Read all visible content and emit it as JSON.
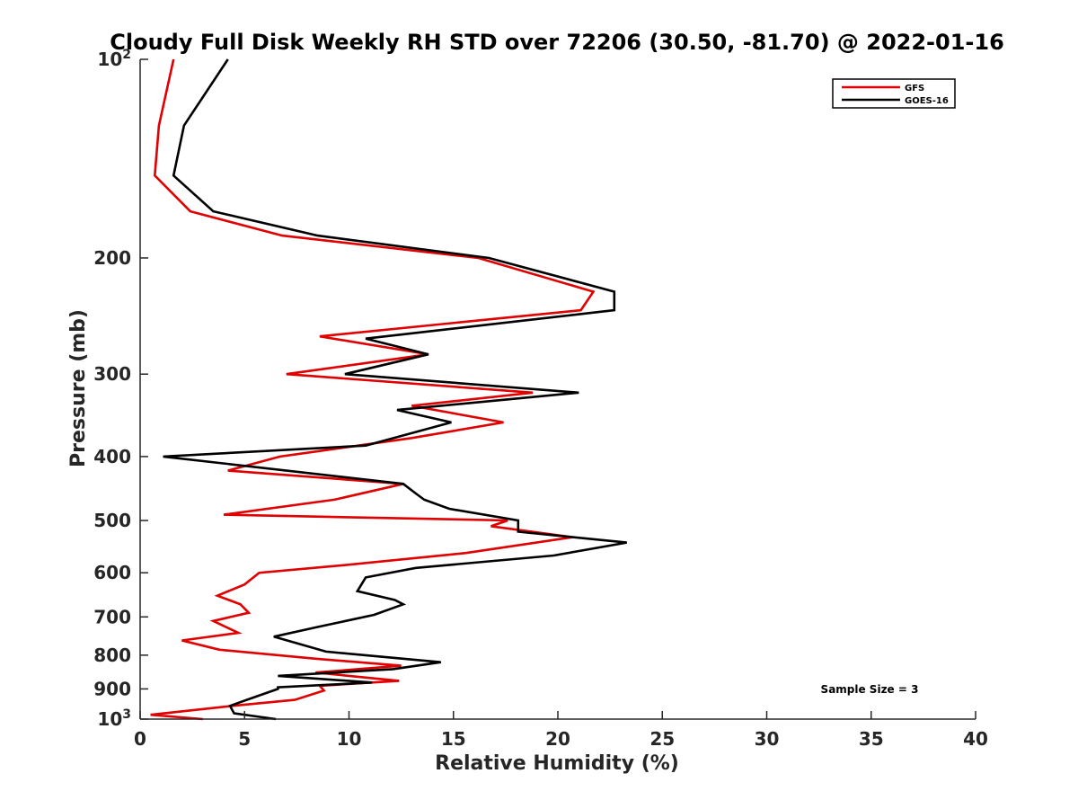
{
  "chart_data": {
    "type": "line",
    "title": "Cloudy Full Disk Weekly RH STD over 72206 (30.50, -81.70) @ 2022-01-16",
    "xlabel": "Relative Humidity (%)",
    "ylabel": "Pressure (mb)",
    "xlim": [
      0,
      40
    ],
    "ylim": [
      100,
      1000
    ],
    "yscale": "log",
    "yaxis_reversed": true,
    "x_ticks": [
      "0",
      "5",
      "10",
      "15",
      "20",
      "25",
      "30",
      "35",
      "40"
    ],
    "y_ticks": [
      {
        "value": 100,
        "label": "10",
        "exp": "2"
      },
      {
        "value": 200,
        "label": "200"
      },
      {
        "value": 300,
        "label": "300"
      },
      {
        "value": 400,
        "label": "400"
      },
      {
        "value": 500,
        "label": "500"
      },
      {
        "value": 600,
        "label": "600"
      },
      {
        "value": 700,
        "label": "700"
      },
      {
        "value": 800,
        "label": "800"
      },
      {
        "value": 900,
        "label": "900"
      },
      {
        "value": 1000,
        "label": "10",
        "exp": "3"
      }
    ],
    "grid": false,
    "legend_position": "top-right",
    "series": [
      {
        "name": "GFS",
        "color": "#e00000",
        "points": [
          [
            1.6,
            100
          ],
          [
            0.9,
            126
          ],
          [
            0.7,
            150
          ],
          [
            2.4,
            170
          ],
          [
            6.8,
            185
          ],
          [
            16.2,
            200
          ],
          [
            21.7,
            225
          ],
          [
            21.1,
            240
          ],
          [
            8.6,
            263
          ],
          [
            13.8,
            280
          ],
          [
            7.0,
            300
          ],
          [
            18.8,
            320
          ],
          [
            13.0,
            335
          ],
          [
            17.4,
            355
          ],
          [
            13.0,
            375
          ],
          [
            6.7,
            400
          ],
          [
            4.2,
            420
          ],
          [
            12.6,
            440
          ],
          [
            9.3,
            465
          ],
          [
            4.0,
            490
          ],
          [
            17.6,
            500
          ],
          [
            16.8,
            510
          ],
          [
            20.7,
            530
          ],
          [
            15.6,
            560
          ],
          [
            9.6,
            585
          ],
          [
            5.7,
            600
          ],
          [
            5.0,
            625
          ],
          [
            3.7,
            650
          ],
          [
            4.8,
            670
          ],
          [
            5.2,
            690
          ],
          [
            3.5,
            710
          ],
          [
            4.7,
            740
          ],
          [
            2.0,
            760
          ],
          [
            3.8,
            785
          ],
          [
            8.4,
            810
          ],
          [
            12.5,
            830
          ],
          [
            8.4,
            850
          ],
          [
            12.4,
            875
          ],
          [
            8.6,
            890
          ],
          [
            8.8,
            905
          ],
          [
            7.4,
            935
          ],
          [
            4.4,
            955
          ],
          [
            0.5,
            985
          ],
          [
            3.0,
            1000
          ]
        ]
      },
      {
        "name": "GOES-16",
        "color": "#000000",
        "points": [
          [
            4.2,
            100
          ],
          [
            2.1,
            126
          ],
          [
            1.6,
            150
          ],
          [
            3.5,
            170
          ],
          [
            8.5,
            185
          ],
          [
            16.7,
            200
          ],
          [
            22.7,
            225
          ],
          [
            22.7,
            240
          ],
          [
            10.8,
            265
          ],
          [
            13.8,
            280
          ],
          [
            9.8,
            300
          ],
          [
            21.0,
            320
          ],
          [
            12.3,
            340
          ],
          [
            14.9,
            355
          ],
          [
            10.8,
            385
          ],
          [
            1.1,
            400
          ],
          [
            12.6,
            440
          ],
          [
            13.2,
            455
          ],
          [
            13.6,
            465
          ],
          [
            14.8,
            480
          ],
          [
            18.1,
            500
          ],
          [
            18.1,
            520
          ],
          [
            23.3,
            540
          ],
          [
            19.8,
            565
          ],
          [
            13.2,
            590
          ],
          [
            10.8,
            610
          ],
          [
            10.4,
            640
          ],
          [
            12.2,
            660
          ],
          [
            12.6,
            670
          ],
          [
            11.2,
            695
          ],
          [
            8.5,
            725
          ],
          [
            6.4,
            750
          ],
          [
            8.9,
            790
          ],
          [
            14.4,
            820
          ],
          [
            12.1,
            840
          ],
          [
            6.6,
            860
          ],
          [
            11.1,
            880
          ],
          [
            6.6,
            895
          ],
          [
            6.6,
            900
          ],
          [
            5.1,
            935
          ],
          [
            4.3,
            955
          ],
          [
            4.5,
            980
          ],
          [
            6.5,
            1000
          ]
        ]
      }
    ],
    "annotations": [
      "Sample Size = 3"
    ]
  }
}
